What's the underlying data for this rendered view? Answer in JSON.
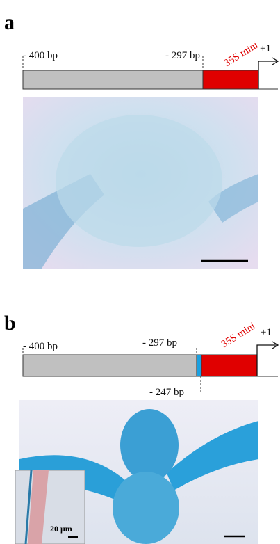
{
  "panels": [
    {
      "label": "a",
      "start": "- 400 bp",
      "junction": "- 297 bp",
      "minimal": "35S mini",
      "tss": "+1"
    },
    {
      "label": "b",
      "start": "- 400 bp",
      "junction": "- 297 bp",
      "minimal": "35S mini",
      "tss": "+1",
      "insert_end": "- 247 bp",
      "inset_scale": "20 μm"
    }
  ]
}
